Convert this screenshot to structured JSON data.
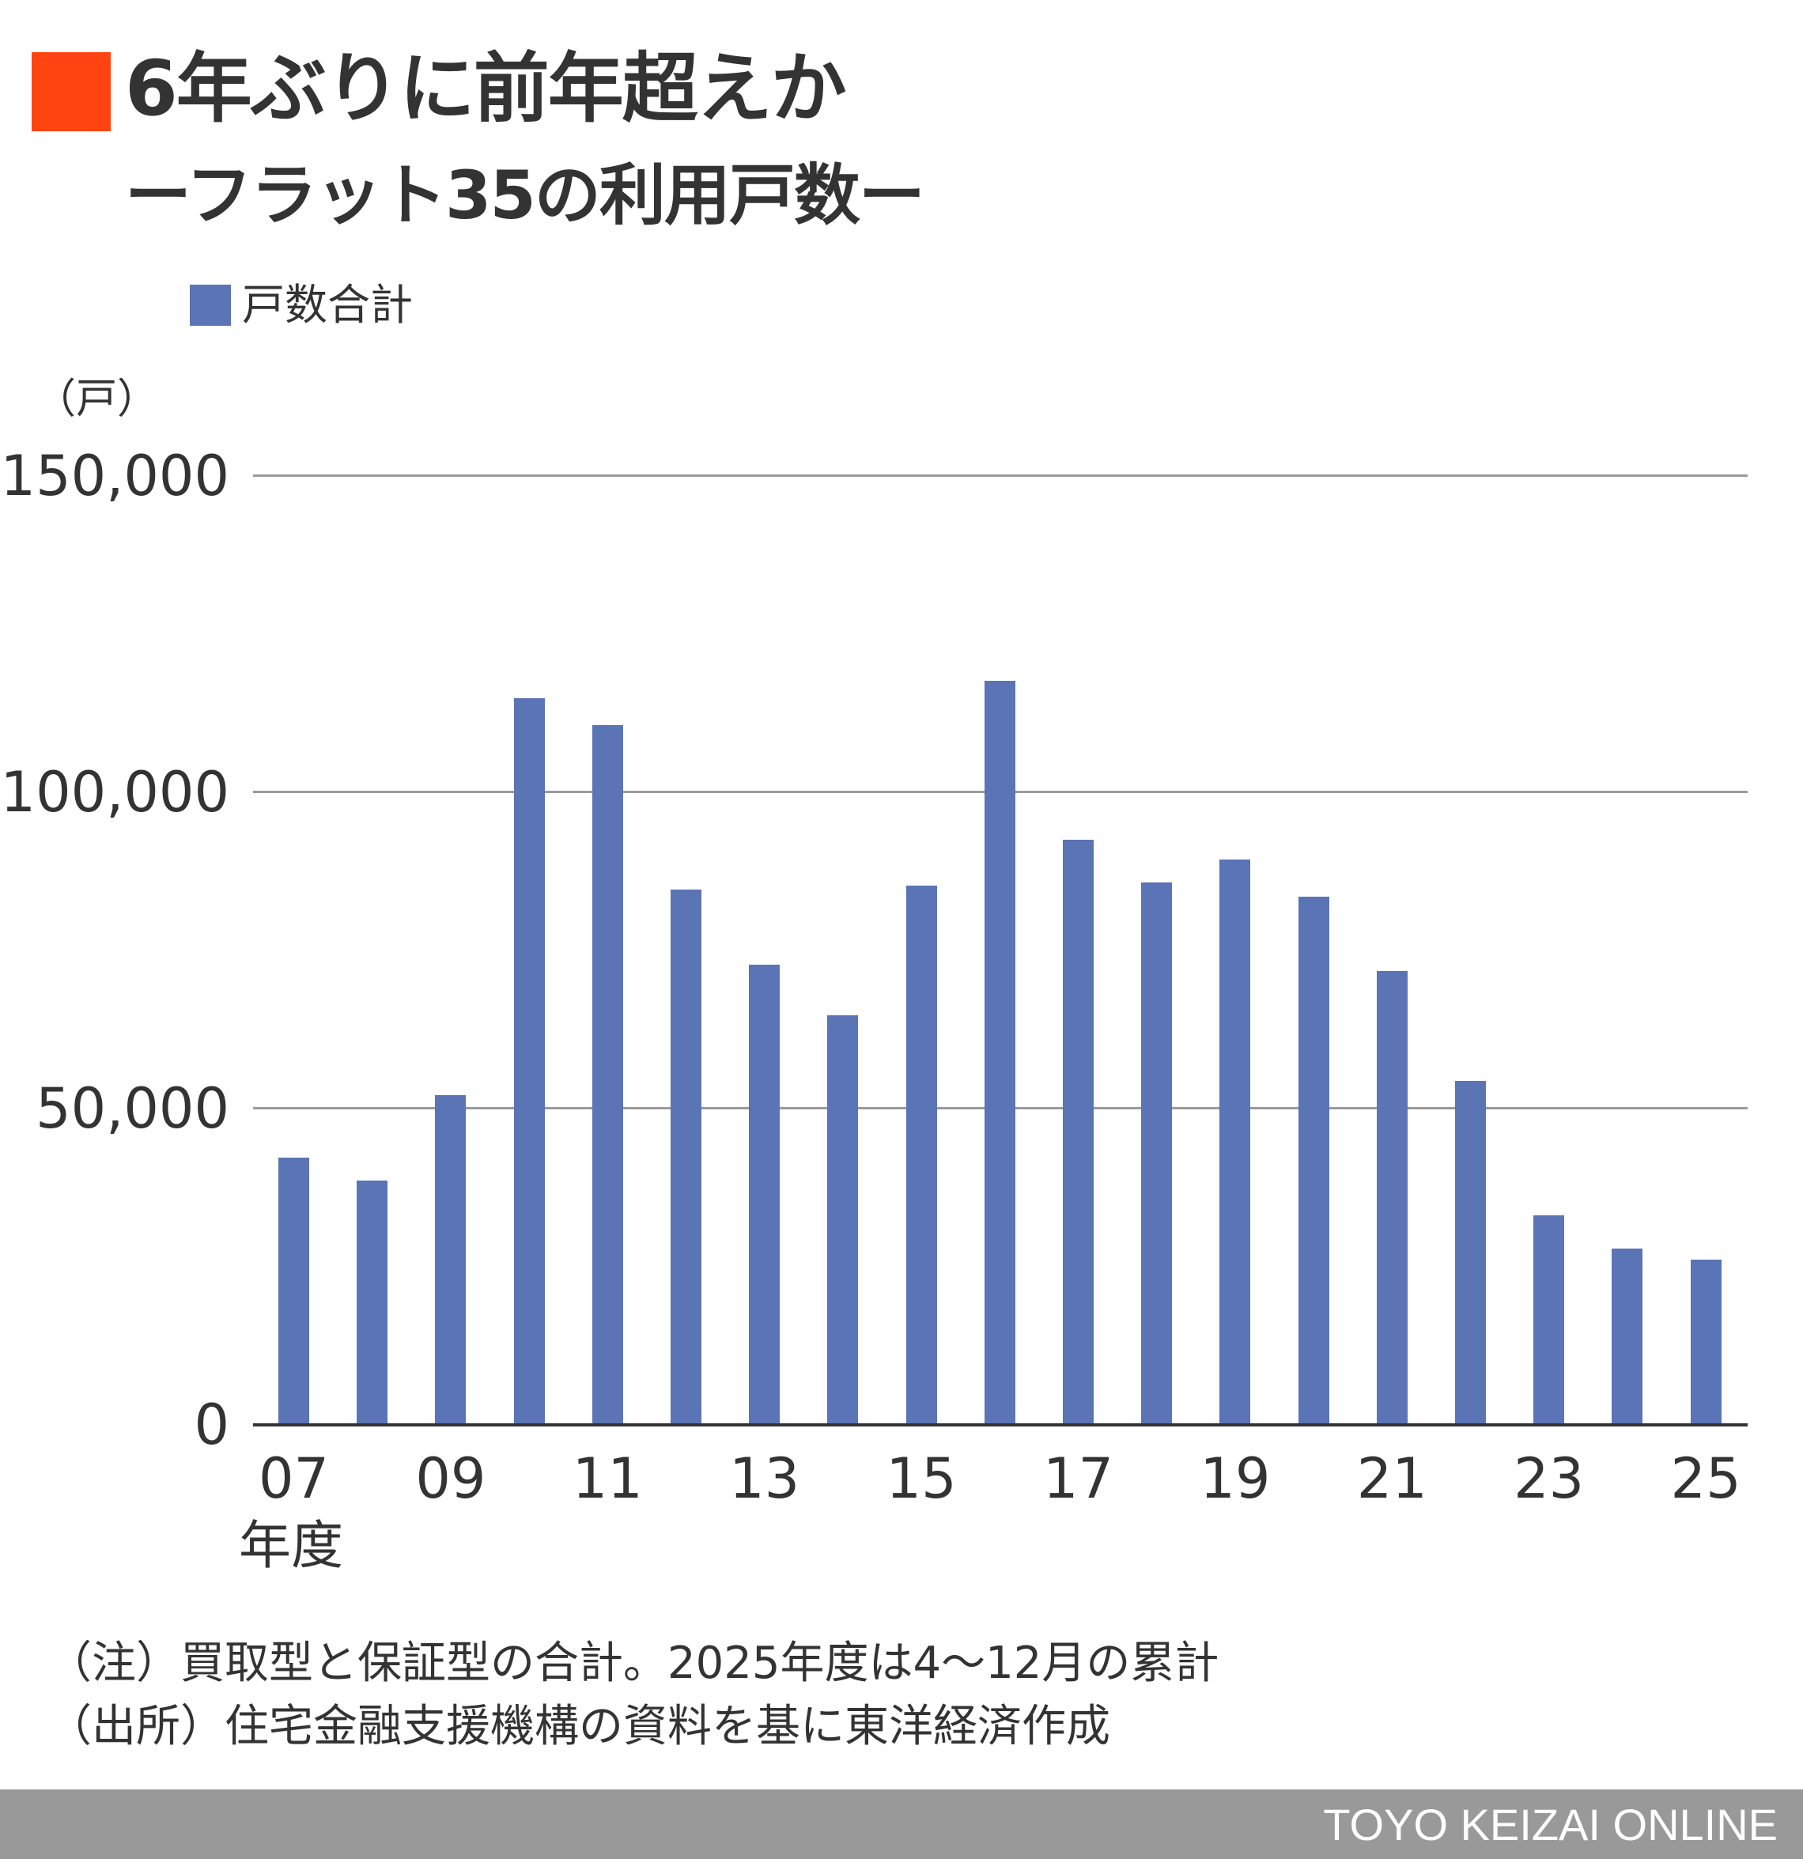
{
  "header": {
    "title": "6年ぶりに前年超えか",
    "subtitle": "ーフラット35の利用戸数ー",
    "title_mark_color": "#FF4411"
  },
  "legend": {
    "label": "戸数合計",
    "color": "#5B74B5"
  },
  "axis": {
    "unit_label": "（戸）",
    "x_title": "年度",
    "y_ticks": [
      "150,000",
      "100,000",
      "50,000",
      "0"
    ],
    "x_ticks": [
      "07",
      "09",
      "11",
      "13",
      "15",
      "17",
      "19",
      "21",
      "23",
      "25"
    ]
  },
  "notes": {
    "note": "（注）買取型と保証型の合計。2025年度は4〜12月の累計",
    "source": "（出所）住宅金融支援機構の資料を基に東洋経済作成"
  },
  "footer": {
    "brand": "TOYO KEIZAI ONLINE"
  },
  "colors": {
    "bar": "#5B74B5",
    "grid": "#9A9A9A",
    "axis": "#333333",
    "footer_bg": "#999999",
    "accent": "#FF4411"
  },
  "chart_data": {
    "type": "bar",
    "title": "6年ぶりに前年超えか",
    "subtitle": "ーフラット35の利用戸数ー",
    "xlabel": "年度",
    "ylabel": "（戸）",
    "categories": [
      "07",
      "08",
      "09",
      "10",
      "11",
      "12",
      "13",
      "14",
      "15",
      "16",
      "17",
      "18",
      "19",
      "20",
      "21",
      "22",
      "23",
      "24",
      "25"
    ],
    "series": [
      {
        "name": "戸数合計",
        "color": "#5B74B5",
        "values": [
          42300,
          38600,
          52100,
          114900,
          110600,
          84600,
          72700,
          64700,
          85200,
          117600,
          92500,
          85700,
          89400,
          83500,
          71800,
          54400,
          33100,
          27900,
          26100
        ]
      }
    ],
    "ylim": [
      0,
      150000
    ],
    "y_ticks": [
      0,
      50000,
      100000,
      150000
    ],
    "x_tick_labels_shown": [
      "07",
      "09",
      "11",
      "13",
      "15",
      "17",
      "19",
      "21",
      "23",
      "25"
    ],
    "grid": true,
    "legend_position": "top-left",
    "annotations": [
      "（注）買取型と保証型の合計。2025年度は4〜12月の累計",
      "（出所）住宅金融支援機構の資料を基に東洋経済作成"
    ]
  }
}
